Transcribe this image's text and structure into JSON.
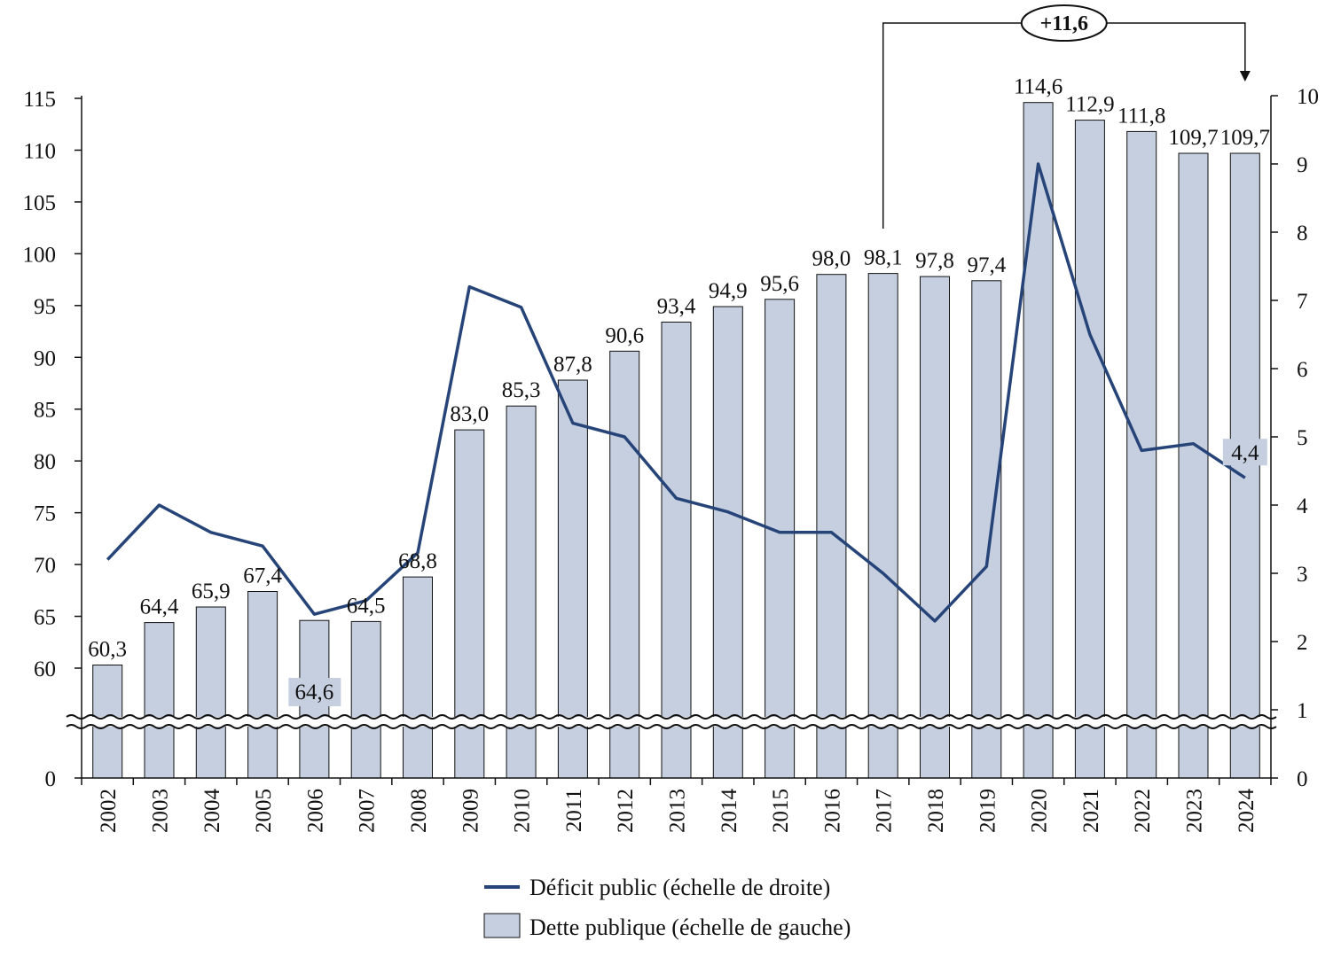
{
  "chart_data": {
    "type": "bar",
    "categories": [
      "2002",
      "2003",
      "2004",
      "2005",
      "2006",
      "2007",
      "2008",
      "2009",
      "2010",
      "2011",
      "2012",
      "2013",
      "2014",
      "2015",
      "2016",
      "2017",
      "2018",
      "2019",
      "2020",
      "2021",
      "2022",
      "2023",
      "2024"
    ],
    "series": [
      {
        "name": "Dette publique (échelle de gauche)",
        "type": "bar",
        "axis": "left",
        "color": "#c5cfe0",
        "values": [
          60.3,
          64.4,
          65.9,
          67.4,
          64.6,
          64.5,
          68.8,
          83.0,
          85.3,
          87.8,
          90.6,
          93.4,
          94.9,
          95.6,
          98.0,
          98.1,
          97.8,
          97.4,
          114.6,
          112.9,
          111.8,
          109.7,
          109.7
        ],
        "labels": [
          "60,3",
          "64,4",
          "65,9",
          "67,4",
          "64,6",
          "64,5",
          "68,8",
          "83,0",
          "85,3",
          "87,8",
          "90,6",
          "93,4",
          "94,9",
          "95,6",
          "98,0",
          "98,1",
          "97,8",
          "97,4",
          "114,6",
          "112,9",
          "111,8",
          "109,7",
          "109,7"
        ]
      },
      {
        "name": "Déficit public (échelle de droite)",
        "type": "line",
        "axis": "right",
        "color": "#264478",
        "values": [
          3.2,
          4.0,
          3.6,
          3.4,
          2.4,
          2.6,
          3.3,
          7.2,
          6.9,
          5.2,
          5.0,
          4.1,
          3.9,
          3.6,
          3.6,
          3.0,
          2.3,
          3.1,
          9.0,
          6.5,
          4.8,
          4.9,
          4.4
        ],
        "labels": [
          "4,4"
        ],
        "labeled_index": 22
      }
    ],
    "left_axis": {
      "ticks": [
        "0",
        "60",
        "65",
        "70",
        "75",
        "80",
        "85",
        "90",
        "95",
        "100",
        "105",
        "110",
        "115"
      ],
      "broken": true,
      "range": [
        0,
        115
      ]
    },
    "right_axis": {
      "ticks": [
        "0",
        "1",
        "2",
        "3",
        "4",
        "5",
        "6",
        "7",
        "8",
        "9",
        "10"
      ],
      "range": [
        0,
        10
      ]
    },
    "annotation": {
      "text": "+11,6",
      "from": "2017",
      "to": "2024"
    },
    "legend": {
      "placement": "bottom",
      "entries": [
        {
          "label": "Déficit public (échelle de droite)",
          "kind": "line"
        },
        {
          "label": "Dette publique (échelle de gauche)",
          "kind": "bar"
        }
      ]
    },
    "xlabel": "",
    "ylabel": "",
    "grid": false
  }
}
